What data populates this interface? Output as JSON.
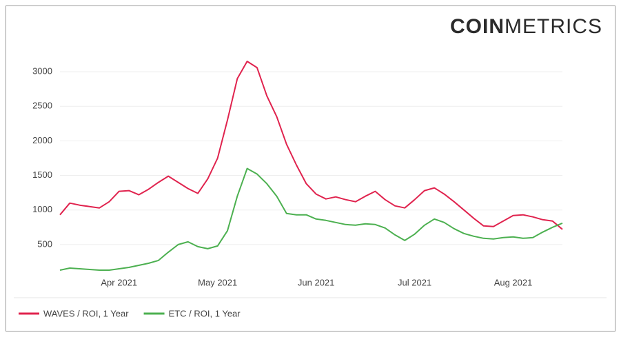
{
  "chart_data": {
    "type": "line",
    "brand": [
      "COIN",
      "METRICS"
    ],
    "categories": [
      null,
      null,
      null,
      null,
      null,
      null,
      "Apr 2021",
      null,
      null,
      null,
      null,
      null,
      null,
      null,
      null,
      null,
      "May 2021",
      null,
      null,
      null,
      null,
      null,
      null,
      null,
      null,
      null,
      "Jun 2021",
      null,
      null,
      null,
      null,
      null,
      null,
      null,
      null,
      null,
      "Jul 2021",
      null,
      null,
      null,
      null,
      null,
      null,
      null,
      null,
      null,
      "Aug 2021",
      null,
      null,
      null,
      null,
      null
    ],
    "series": [
      {
        "name": "WAVES / ROI, 1 Year",
        "color": "#e0234e",
        "values": [
          930,
          1100,
          1070,
          1050,
          1030,
          1120,
          1270,
          1280,
          1220,
          1300,
          1400,
          1490,
          1400,
          1310,
          1240,
          1450,
          1750,
          2300,
          2900,
          3150,
          3060,
          2650,
          2350,
          1950,
          1650,
          1380,
          1230,
          1160,
          1190,
          1150,
          1120,
          1200,
          1270,
          1150,
          1060,
          1030,
          1150,
          1280,
          1320,
          1230,
          1120,
          1000,
          880,
          770,
          760,
          840,
          920,
          930,
          900,
          860,
          840,
          720
        ]
      },
      {
        "name": "ETC / ROI, 1 Year",
        "color": "#4cb050",
        "values": [
          130,
          160,
          150,
          140,
          130,
          130,
          150,
          170,
          200,
          230,
          270,
          390,
          500,
          540,
          470,
          440,
          480,
          700,
          1200,
          1600,
          1520,
          1380,
          1200,
          950,
          930,
          930,
          870,
          850,
          820,
          790,
          780,
          800,
          790,
          740,
          640,
          560,
          650,
          780,
          870,
          820,
          730,
          660,
          620,
          590,
          580,
          600,
          610,
          590,
          600,
          680,
          750,
          810
        ]
      }
    ],
    "ylim": [
      100,
      3250
    ],
    "yticks": [
      500,
      1000,
      1500,
      2000,
      2500,
      3000
    ],
    "grid": true
  }
}
